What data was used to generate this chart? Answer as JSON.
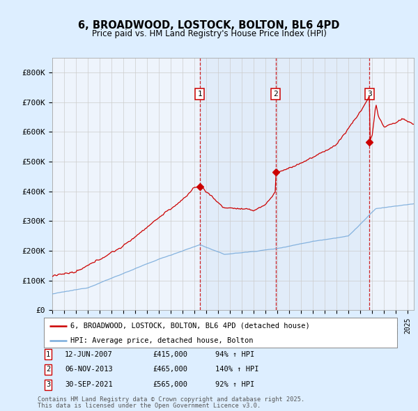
{
  "title": "6, BROADWOOD, LOSTOCK, BOLTON, BL6 4PD",
  "subtitle": "Price paid vs. HM Land Registry's House Price Index (HPI)",
  "legend_line1": "6, BROADWOOD, LOSTOCK, BOLTON, BL6 4PD (detached house)",
  "legend_line2": "HPI: Average price, detached house, Bolton",
  "footer1": "Contains HM Land Registry data © Crown copyright and database right 2025.",
  "footer2": "This data is licensed under the Open Government Licence v3.0.",
  "sales": [
    {
      "num": 1,
      "date": "12-JUN-2007",
      "price": "£415,000",
      "hpi": "94% ↑ HPI",
      "x_year": 2007.44
    },
    {
      "num": 2,
      "date": "06-NOV-2013",
      "price": "£465,000",
      "hpi": "140% ↑ HPI",
      "x_year": 2013.84
    },
    {
      "num": 3,
      "date": "30-SEP-2021",
      "price": "£565,000",
      "hpi": "92% ↑ HPI",
      "x_year": 2021.75
    }
  ],
  "property_color": "#cc0000",
  "hpi_color": "#7aacdc",
  "shade_color": "#ddeeff",
  "background_color": "#ddeeff",
  "plot_bg": "#eef4fc",
  "ylim": [
    0,
    850000
  ],
  "xlim_start": 1995,
  "xlim_end": 2025.5,
  "ytick_labels": [
    "£0",
    "£100K",
    "£200K",
    "£300K",
    "£400K",
    "£500K",
    "£600K",
    "£700K",
    "£800K"
  ],
  "ytick_values": [
    0,
    100000,
    200000,
    300000,
    400000,
    500000,
    600000,
    700000,
    800000
  ]
}
